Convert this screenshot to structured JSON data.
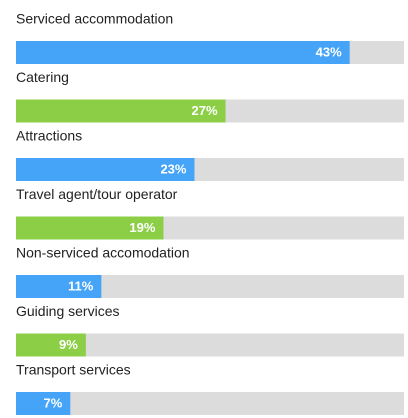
{
  "chart_data": {
    "type": "bar",
    "categories": [
      "Serviced accommodation",
      "Catering",
      "Attractions",
      "Travel agent/tour operator",
      "Non-serviced accomodation",
      "Guiding services",
      "Transport services"
    ],
    "values": [
      43,
      27,
      23,
      19,
      11,
      9,
      7
    ],
    "value_labels": [
      "43%",
      "27%",
      "23%",
      "19%",
      "11%",
      "9%",
      "7%"
    ],
    "colors": [
      "#45a4f7",
      "#8ccf47",
      "#45a4f7",
      "#8ccf47",
      "#45a4f7",
      "#8ccf47",
      "#45a4f7"
    ],
    "track_color": "#dcdcdc",
    "xlim": [
      0,
      50
    ]
  }
}
